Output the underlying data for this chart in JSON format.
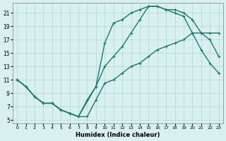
{
  "xlabel": "Humidex (Indice chaleur)",
  "ylabel": "",
  "bg_color": "#d8f0ee",
  "grid_color": "#b0d8d4",
  "line_color": "#1a7a6e",
  "xlim": [
    0,
    23
  ],
  "ylim": [
    5,
    22
  ],
  "xticks": [
    0,
    1,
    2,
    3,
    4,
    5,
    6,
    7,
    8,
    9,
    10,
    11,
    12,
    13,
    14,
    15,
    16,
    17,
    18,
    19,
    20,
    21,
    22,
    23
  ],
  "yticks": [
    5,
    7,
    9,
    11,
    13,
    15,
    17,
    19,
    21
  ],
  "line1_x": [
    0,
    1,
    2,
    3,
    4,
    5,
    6,
    7,
    8,
    9,
    10,
    11,
    12,
    13,
    14,
    15,
    16,
    17,
    18,
    19,
    20,
    21,
    22,
    23
  ],
  "line1_y": [
    11,
    10,
    8.5,
    7.5,
    7.5,
    6.5,
    6,
    5.5,
    5.5,
    8,
    10.5,
    11,
    12,
    13,
    13.5,
    14.5,
    15.5,
    16,
    16.5,
    17,
    18,
    18,
    18,
    18
  ],
  "line2_x": [
    0,
    1,
    2,
    3,
    4,
    5,
    6,
    7,
    8,
    9,
    10,
    11,
    12,
    13,
    14,
    15,
    16,
    17,
    18,
    19,
    20,
    21,
    22,
    23
  ],
  "line2_y": [
    11,
    10,
    8.5,
    7.5,
    7.5,
    6.5,
    6,
    5.5,
    8,
    10,
    13,
    14.5,
    16,
    18,
    20,
    22,
    22,
    21.5,
    21,
    20.5,
    18,
    15.5,
    13.5,
    12
  ],
  "line3_x": [
    0,
    1,
    2,
    3,
    4,
    5,
    6,
    7,
    9,
    10,
    11,
    12,
    13,
    14,
    15,
    16,
    17,
    18,
    19,
    20,
    21,
    22,
    23
  ],
  "line3_y": [
    11,
    10,
    8.5,
    7.5,
    7.5,
    6.5,
    6,
    5.5,
    10,
    16.5,
    19.5,
    20,
    21,
    21.5,
    22,
    22,
    21.5,
    21.5,
    21,
    20,
    18,
    17,
    14.5
  ]
}
